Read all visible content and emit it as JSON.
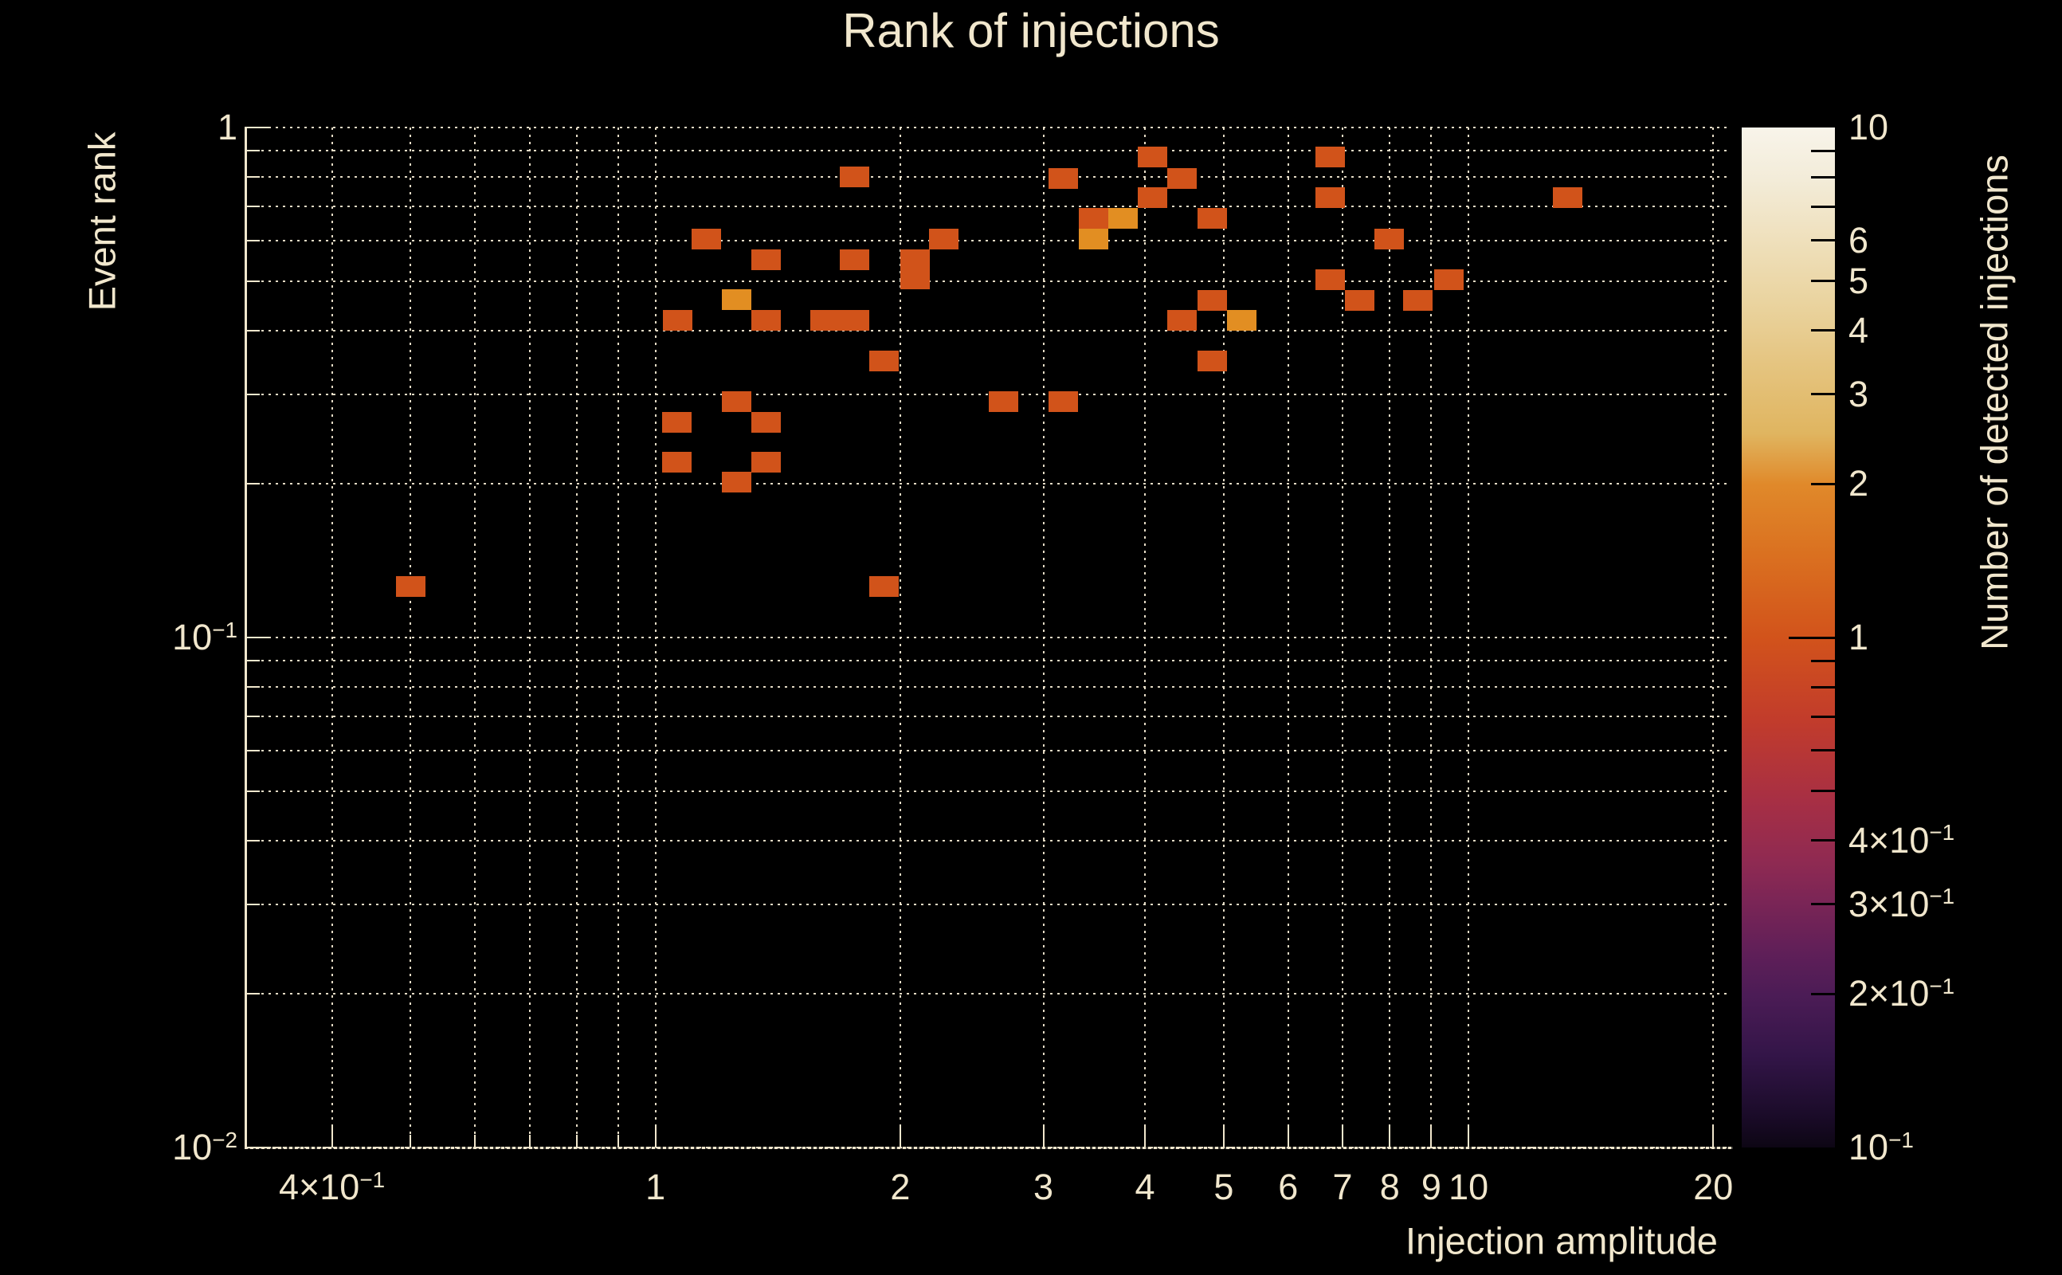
{
  "title": "Rank of injections",
  "colors": {
    "background": "#000000",
    "text": "#f1e7cd",
    "grid": "#f1e7cd",
    "frame": "#f1e7cd",
    "colorbar_tick": "#000000",
    "count_colors": {
      "1": "#d1531a",
      "2": "#e28e22"
    }
  },
  "chart_data": {
    "type": "heatmap",
    "title": "Rank of injections",
    "xlabel": "Injection amplitude",
    "ylabel": "Event rank",
    "colorbar_label": "Number of detected injections",
    "x_scale": "log",
    "y_scale": "log",
    "color_scale": "log",
    "xlim": [
      0.3145,
      21.05
    ],
    "ylim": [
      0.01,
      1.0
    ],
    "clim": [
      0.1,
      10
    ],
    "grid": true,
    "x_axis": {
      "ticks": [
        {
          "v": 0.4,
          "label": "4×10^−1"
        },
        {
          "v": 0.5
        },
        {
          "v": 0.6
        },
        {
          "v": 0.7
        },
        {
          "v": 0.8
        },
        {
          "v": 0.9
        },
        {
          "v": 1,
          "label": "1"
        },
        {
          "v": 2,
          "label": "2"
        },
        {
          "v": 3,
          "label": "3"
        },
        {
          "v": 4,
          "label": "4"
        },
        {
          "v": 5,
          "label": "5"
        },
        {
          "v": 6,
          "label": "6"
        },
        {
          "v": 7,
          "label": "7"
        },
        {
          "v": 8,
          "label": "8"
        },
        {
          "v": 9,
          "label": "9"
        },
        {
          "v": 10,
          "label": "10"
        },
        {
          "v": 20,
          "label": "20"
        }
      ]
    },
    "y_axis": {
      "ticks": [
        {
          "v": 1,
          "label": "1"
        },
        {
          "v": 0.9
        },
        {
          "v": 0.8
        },
        {
          "v": 0.7
        },
        {
          "v": 0.6
        },
        {
          "v": 0.5
        },
        {
          "v": 0.4
        },
        {
          "v": 0.3
        },
        {
          "v": 0.2
        },
        {
          "v": 0.1,
          "label": "10^−1"
        },
        {
          "v": 0.09
        },
        {
          "v": 0.08
        },
        {
          "v": 0.07
        },
        {
          "v": 0.06
        },
        {
          "v": 0.05
        },
        {
          "v": 0.04
        },
        {
          "v": 0.03
        },
        {
          "v": 0.02
        },
        {
          "v": 0.01,
          "label": "10^−2"
        }
      ]
    },
    "colorbar_ticks": [
      {
        "v": 10,
        "label": "10"
      },
      {
        "v": 9
      },
      {
        "v": 8
      },
      {
        "v": 7
      },
      {
        "v": 6,
        "label": "6"
      },
      {
        "v": 5,
        "label": "5"
      },
      {
        "v": 4,
        "label": "4"
      },
      {
        "v": 3,
        "label": "3"
      },
      {
        "v": 2,
        "label": "2"
      },
      {
        "v": 1,
        "label": "1"
      },
      {
        "v": 0.9
      },
      {
        "v": 0.8
      },
      {
        "v": 0.7
      },
      {
        "v": 0.6
      },
      {
        "v": 0.5
      },
      {
        "v": 0.4,
        "label": "4×10^−1"
      },
      {
        "v": 0.3,
        "label": "3×10^−1"
      },
      {
        "v": 0.2,
        "label": "2×10^−1"
      },
      {
        "v": 0.1,
        "label": "10^−1"
      }
    ],
    "colorbar_gradient": [
      {
        "p": 0.0,
        "c": "#f8f4ea"
      },
      {
        "p": 0.05,
        "c": "#f3ecd9"
      },
      {
        "p": 0.11,
        "c": "#efe0bc"
      },
      {
        "p": 0.17,
        "c": "#ead4a0"
      },
      {
        "p": 0.23,
        "c": "#e5c581"
      },
      {
        "p": 0.3,
        "c": "#e0b560"
      },
      {
        "p": 0.35,
        "c": "#e0892a"
      },
      {
        "p": 0.42,
        "c": "#da7020"
      },
      {
        "p": 0.5,
        "c": "#d2531b"
      },
      {
        "p": 0.58,
        "c": "#c23c2b"
      },
      {
        "p": 0.66,
        "c": "#a72f44"
      },
      {
        "p": 0.72,
        "c": "#8f2a52"
      },
      {
        "p": 0.76,
        "c": "#7a2556"
      },
      {
        "p": 0.81,
        "c": "#5f1f58"
      },
      {
        "p": 0.85,
        "c": "#4c1c56"
      },
      {
        "p": 0.91,
        "c": "#331548"
      },
      {
        "p": 0.97,
        "c": "#1a0b28"
      },
      {
        "p": 1.0,
        "c": "#0d0614"
      }
    ],
    "cells": [
      {
        "a": 1.757,
        "r": 0.8,
        "n": 1
      },
      {
        "a": 1.155,
        "r": 0.604,
        "n": 1
      },
      {
        "a": 1.368,
        "r": 0.551,
        "n": 1
      },
      {
        "a": 1.757,
        "r": 0.551,
        "n": 1
      },
      {
        "a": 2.085,
        "r": 0.551,
        "n": 1
      },
      {
        "a": 2.085,
        "r": 0.504,
        "n": 1
      },
      {
        "a": 2.262,
        "r": 0.604,
        "n": 1
      },
      {
        "a": 1.259,
        "r": 0.46,
        "n": 2
      },
      {
        "a": 1.065,
        "r": 0.419,
        "n": 1
      },
      {
        "a": 1.368,
        "r": 0.419,
        "n": 1
      },
      {
        "a": 1.617,
        "r": 0.419,
        "n": 1
      },
      {
        "a": 1.757,
        "r": 0.419,
        "n": 1
      },
      {
        "a": 1.912,
        "r": 0.348,
        "n": 1
      },
      {
        "a": 1.259,
        "r": 0.29,
        "n": 1
      },
      {
        "a": 2.679,
        "r": 0.29,
        "n": 1
      },
      {
        "a": 1.063,
        "r": 0.264,
        "n": 1
      },
      {
        "a": 1.368,
        "r": 0.264,
        "n": 1
      },
      {
        "a": 1.063,
        "r": 0.221,
        "n": 1
      },
      {
        "a": 1.368,
        "r": 0.221,
        "n": 1
      },
      {
        "a": 1.259,
        "r": 0.202,
        "n": 1
      },
      {
        "a": 4.085,
        "r": 0.875,
        "n": 1
      },
      {
        "a": 3.173,
        "r": 0.794,
        "n": 1
      },
      {
        "a": 4.441,
        "r": 0.794,
        "n": 1
      },
      {
        "a": 4.085,
        "r": 0.729,
        "n": 1
      },
      {
        "a": 6.755,
        "r": 0.875,
        "n": 1
      },
      {
        "a": 6.755,
        "r": 0.729,
        "n": 1
      },
      {
        "a": 3.457,
        "r": 0.664,
        "n": 1
      },
      {
        "a": 3.758,
        "r": 0.664,
        "n": 2
      },
      {
        "a": 3.457,
        "r": 0.604,
        "n": 2
      },
      {
        "a": 4.84,
        "r": 0.664,
        "n": 1
      },
      {
        "a": 7.98,
        "r": 0.604,
        "n": 1
      },
      {
        "a": 6.755,
        "r": 0.503,
        "n": 1
      },
      {
        "a": 7.34,
        "r": 0.458,
        "n": 1
      },
      {
        "a": 4.84,
        "r": 0.458,
        "n": 1
      },
      {
        "a": 4.441,
        "r": 0.419,
        "n": 1
      },
      {
        "a": 5.26,
        "r": 0.419,
        "n": 2
      },
      {
        "a": 4.84,
        "r": 0.348,
        "n": 1
      },
      {
        "a": 3.173,
        "r": 0.29,
        "n": 1
      },
      {
        "a": 13.23,
        "r": 0.729,
        "n": 1
      },
      {
        "a": 9.45,
        "r": 0.503,
        "n": 1
      },
      {
        "a": 8.67,
        "r": 0.458,
        "n": 1
      },
      {
        "a": 0.5,
        "r": 0.126,
        "n": 1
      },
      {
        "a": 1.91,
        "r": 0.126,
        "n": 1
      }
    ]
  }
}
